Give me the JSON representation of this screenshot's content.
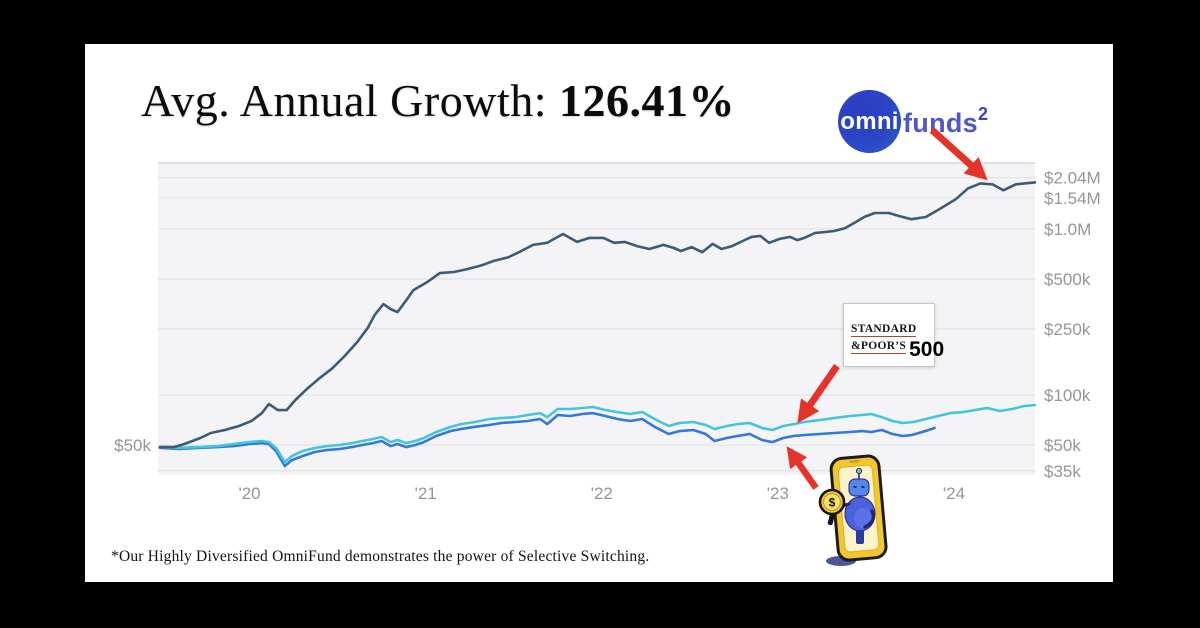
{
  "title": {
    "prefix": "Avg. Annual Growth: ",
    "value": "126.41%"
  },
  "logo": {
    "circle_text": "omni",
    "suffix": "funds",
    "superscript": "2"
  },
  "sp_badge": {
    "line1": "STANDARD",
    "line2": "&POOR’S",
    "number": "500"
  },
  "mascot": {
    "symbol": "$"
  },
  "footnote": "*Our Highly Diversified OmniFund demonstrates the power of Selective Switching.",
  "colors": {
    "accent_red": "#e63229",
    "omnifund_line": "#3d5a78",
    "sp500_line": "#45c4de",
    "blue_line": "#3478d8",
    "axis_text": "#95959a"
  },
  "chart_data": {
    "type": "line",
    "scale": "log",
    "grid": true,
    "plot_bg": "#f4f4f6",
    "grid_color": "#e2e2e6",
    "top_border_color": "#d7d7db",
    "x_axis": {
      "range": [
        2019.48,
        2024.46
      ],
      "ticks": [
        2020,
        2021,
        2022,
        2023,
        2024
      ],
      "labels": [
        "'20",
        "'21",
        "'22",
        "'23",
        "'24"
      ]
    },
    "y_axis": {
      "range": [
        33000,
        2500000
      ],
      "ticks": [
        2040000,
        1540000,
        1000000,
        500000,
        250000,
        100000,
        50000,
        35000
      ],
      "labels": [
        "$2.04M",
        "$1.54M",
        "$1.0M",
        "$500k",
        "$250k",
        "$100k",
        "$50k",
        "$35k"
      ],
      "left_label": "$50k",
      "left_label_value": 50000
    },
    "series": [
      {
        "id": "blue-index",
        "name": "Unlabeled blue index (robot arrow)",
        "color": "#3478d8",
        "width": 2.6,
        "points": [
          [
            2019.49,
            48100
          ],
          [
            2019.6,
            47300
          ],
          [
            2019.72,
            48100
          ],
          [
            2019.82,
            48600
          ],
          [
            2019.91,
            49300
          ],
          [
            2020.0,
            50700
          ],
          [
            2020.07,
            51400
          ],
          [
            2020.11,
            50700
          ],
          [
            2020.15,
            46000
          ],
          [
            2020.2,
            37400
          ],
          [
            2020.24,
            40600
          ],
          [
            2020.3,
            42900
          ],
          [
            2020.37,
            45400
          ],
          [
            2020.44,
            46700
          ],
          [
            2020.51,
            47300
          ],
          [
            2020.58,
            48600
          ],
          [
            2020.64,
            50000
          ],
          [
            2020.7,
            51400
          ],
          [
            2020.75,
            52900
          ],
          [
            2020.8,
            49300
          ],
          [
            2020.84,
            50700
          ],
          [
            2020.89,
            48600
          ],
          [
            2020.94,
            50000
          ],
          [
            2020.99,
            52100
          ],
          [
            2021.06,
            56700
          ],
          [
            2021.14,
            60700
          ],
          [
            2021.2,
            62500
          ],
          [
            2021.28,
            64400
          ],
          [
            2021.36,
            66000
          ],
          [
            2021.43,
            67900
          ],
          [
            2021.51,
            68800
          ],
          [
            2021.58,
            69800
          ],
          [
            2021.65,
            71800
          ],
          [
            2021.69,
            66900
          ],
          [
            2021.75,
            75800
          ],
          [
            2021.82,
            74800
          ],
          [
            2021.89,
            76900
          ],
          [
            2021.95,
            77900
          ],
          [
            2022.02,
            74800
          ],
          [
            2022.09,
            71800
          ],
          [
            2022.16,
            69800
          ],
          [
            2022.23,
            71800
          ],
          [
            2022.3,
            64400
          ],
          [
            2022.38,
            58300
          ],
          [
            2022.44,
            60700
          ],
          [
            2022.52,
            61600
          ],
          [
            2022.59,
            58300
          ],
          [
            2022.64,
            52900
          ],
          [
            2022.71,
            55100
          ],
          [
            2022.77,
            56700
          ],
          [
            2022.84,
            58300
          ],
          [
            2022.91,
            53600
          ],
          [
            2022.97,
            52100
          ],
          [
            2023.03,
            55100
          ],
          [
            2023.09,
            56700
          ],
          [
            2023.15,
            57500
          ],
          [
            2023.24,
            58300
          ],
          [
            2023.32,
            59100
          ],
          [
            2023.41,
            59900
          ],
          [
            2023.48,
            60700
          ],
          [
            2023.53,
            59900
          ],
          [
            2023.59,
            61600
          ],
          [
            2023.65,
            58300
          ],
          [
            2023.71,
            56700
          ],
          [
            2023.76,
            57500
          ],
          [
            2023.82,
            59900
          ],
          [
            2023.89,
            63300
          ]
        ]
      },
      {
        "id": "sp500",
        "name": "S&P 500",
        "color": "#45c4de",
        "width": 2.6,
        "points": [
          [
            2019.49,
            48600
          ],
          [
            2019.6,
            48100
          ],
          [
            2019.72,
            48600
          ],
          [
            2019.82,
            49300
          ],
          [
            2019.91,
            50700
          ],
          [
            2020.0,
            52100
          ],
          [
            2020.07,
            52900
          ],
          [
            2020.11,
            52100
          ],
          [
            2020.15,
            48000
          ],
          [
            2020.2,
            39500
          ],
          [
            2020.24,
            42900
          ],
          [
            2020.3,
            46000
          ],
          [
            2020.37,
            48000
          ],
          [
            2020.44,
            49300
          ],
          [
            2020.51,
            50000
          ],
          [
            2020.58,
            51400
          ],
          [
            2020.64,
            52900
          ],
          [
            2020.7,
            54400
          ],
          [
            2020.75,
            55900
          ],
          [
            2020.8,
            52100
          ],
          [
            2020.84,
            53600
          ],
          [
            2020.89,
            51400
          ],
          [
            2020.94,
            52900
          ],
          [
            2020.99,
            55100
          ],
          [
            2021.06,
            59900
          ],
          [
            2021.14,
            64200
          ],
          [
            2021.2,
            66900
          ],
          [
            2021.28,
            68800
          ],
          [
            2021.36,
            71700
          ],
          [
            2021.43,
            72700
          ],
          [
            2021.51,
            73700
          ],
          [
            2021.58,
            75800
          ],
          [
            2021.65,
            77900
          ],
          [
            2021.69,
            73700
          ],
          [
            2021.75,
            82400
          ],
          [
            2021.82,
            82400
          ],
          [
            2021.89,
            83600
          ],
          [
            2021.95,
            84700
          ],
          [
            2022.02,
            81300
          ],
          [
            2022.09,
            79000
          ],
          [
            2022.16,
            76900
          ],
          [
            2022.23,
            79100
          ],
          [
            2022.3,
            71800
          ],
          [
            2022.38,
            65100
          ],
          [
            2022.44,
            67900
          ],
          [
            2022.52,
            68800
          ],
          [
            2022.59,
            66000
          ],
          [
            2022.64,
            62500
          ],
          [
            2022.71,
            65100
          ],
          [
            2022.77,
            66900
          ],
          [
            2022.84,
            67900
          ],
          [
            2022.91,
            63300
          ],
          [
            2022.97,
            61600
          ],
          [
            2023.03,
            65100
          ],
          [
            2023.09,
            66900
          ],
          [
            2023.15,
            68800
          ],
          [
            2023.24,
            70800
          ],
          [
            2023.32,
            72700
          ],
          [
            2023.41,
            74800
          ],
          [
            2023.48,
            75800
          ],
          [
            2023.53,
            76900
          ],
          [
            2023.59,
            73700
          ],
          [
            2023.65,
            69800
          ],
          [
            2023.71,
            67900
          ],
          [
            2023.77,
            68800
          ],
          [
            2023.84,
            71800
          ],
          [
            2023.91,
            74800
          ],
          [
            2023.98,
            77900
          ],
          [
            2024.05,
            79000
          ],
          [
            2024.12,
            81300
          ],
          [
            2024.19,
            83600
          ],
          [
            2024.26,
            80200
          ],
          [
            2024.33,
            82400
          ],
          [
            2024.4,
            85900
          ],
          [
            2024.46,
            87100
          ]
        ]
      },
      {
        "id": "omnifund",
        "name": "OmniFund",
        "color": "#3d5a78",
        "width": 2.6,
        "points": [
          [
            2019.49,
            48600
          ],
          [
            2019.57,
            48600
          ],
          [
            2019.63,
            50700
          ],
          [
            2019.72,
            55100
          ],
          [
            2019.78,
            59100
          ],
          [
            2019.86,
            61600
          ],
          [
            2019.94,
            65100
          ],
          [
            2020.01,
            69700
          ],
          [
            2020.07,
            77900
          ],
          [
            2020.11,
            88300
          ],
          [
            2020.16,
            81200
          ],
          [
            2020.21,
            81200
          ],
          [
            2020.26,
            93400
          ],
          [
            2020.33,
            110000
          ],
          [
            2020.4,
            127000
          ],
          [
            2020.47,
            145000
          ],
          [
            2020.54,
            172000
          ],
          [
            2020.61,
            208000
          ],
          [
            2020.67,
            253000
          ],
          [
            2020.71,
            303000
          ],
          [
            2020.76,
            353000
          ],
          [
            2020.8,
            330000
          ],
          [
            2020.84,
            316000
          ],
          [
            2020.89,
            373000
          ],
          [
            2020.93,
            429000
          ],
          [
            2021.01,
            480000
          ],
          [
            2021.08,
            543000
          ],
          [
            2021.16,
            551000
          ],
          [
            2021.24,
            575000
          ],
          [
            2021.32,
            606000
          ],
          [
            2021.39,
            645000
          ],
          [
            2021.47,
            677000
          ],
          [
            2021.53,
            725000
          ],
          [
            2021.61,
            803000
          ],
          [
            2021.69,
            827000
          ],
          [
            2021.78,
            934000
          ],
          [
            2021.86,
            837000
          ],
          [
            2021.93,
            885000
          ],
          [
            2022.01,
            885000
          ],
          [
            2022.07,
            827000
          ],
          [
            2022.13,
            837000
          ],
          [
            2022.2,
            789000
          ],
          [
            2022.27,
            758000
          ],
          [
            2022.35,
            803000
          ],
          [
            2022.41,
            769000
          ],
          [
            2022.45,
            738000
          ],
          [
            2022.51,
            779000
          ],
          [
            2022.57,
            725000
          ],
          [
            2022.63,
            814000
          ],
          [
            2022.68,
            758000
          ],
          [
            2022.74,
            789000
          ],
          [
            2022.8,
            847000
          ],
          [
            2022.85,
            897000
          ],
          [
            2022.9,
            909000
          ],
          [
            2022.95,
            827000
          ],
          [
            2023.01,
            872000
          ],
          [
            2023.07,
            897000
          ],
          [
            2023.11,
            858000
          ],
          [
            2023.15,
            885000
          ],
          [
            2023.21,
            947000
          ],
          [
            2023.27,
            960000
          ],
          [
            2023.32,
            973000
          ],
          [
            2023.38,
            1012000
          ],
          [
            2023.44,
            1100000
          ],
          [
            2023.49,
            1182000
          ],
          [
            2023.55,
            1250000
          ],
          [
            2023.63,
            1250000
          ],
          [
            2023.69,
            1197000
          ],
          [
            2023.76,
            1147000
          ],
          [
            2023.84,
            1182000
          ],
          [
            2023.92,
            1322000
          ],
          [
            2024.01,
            1513000
          ],
          [
            2024.08,
            1759000
          ],
          [
            2024.15,
            1885000
          ],
          [
            2024.22,
            1859000
          ],
          [
            2024.28,
            1713000
          ],
          [
            2024.35,
            1859000
          ],
          [
            2024.4,
            1885000
          ],
          [
            2024.46,
            1911000
          ]
        ]
      }
    ]
  }
}
